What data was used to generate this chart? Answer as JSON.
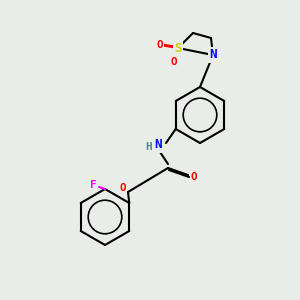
{
  "bg_color": "#e8ede8",
  "bond_color": "#000000",
  "bond_lw": 1.5,
  "atom_colors": {
    "S": "#cccc00",
    "N": "#0000ff",
    "O": "#ff0000",
    "F": "#ff00ff",
    "H": "#558888",
    "C": "#000000"
  },
  "font_size": 9,
  "font_size_small": 8
}
